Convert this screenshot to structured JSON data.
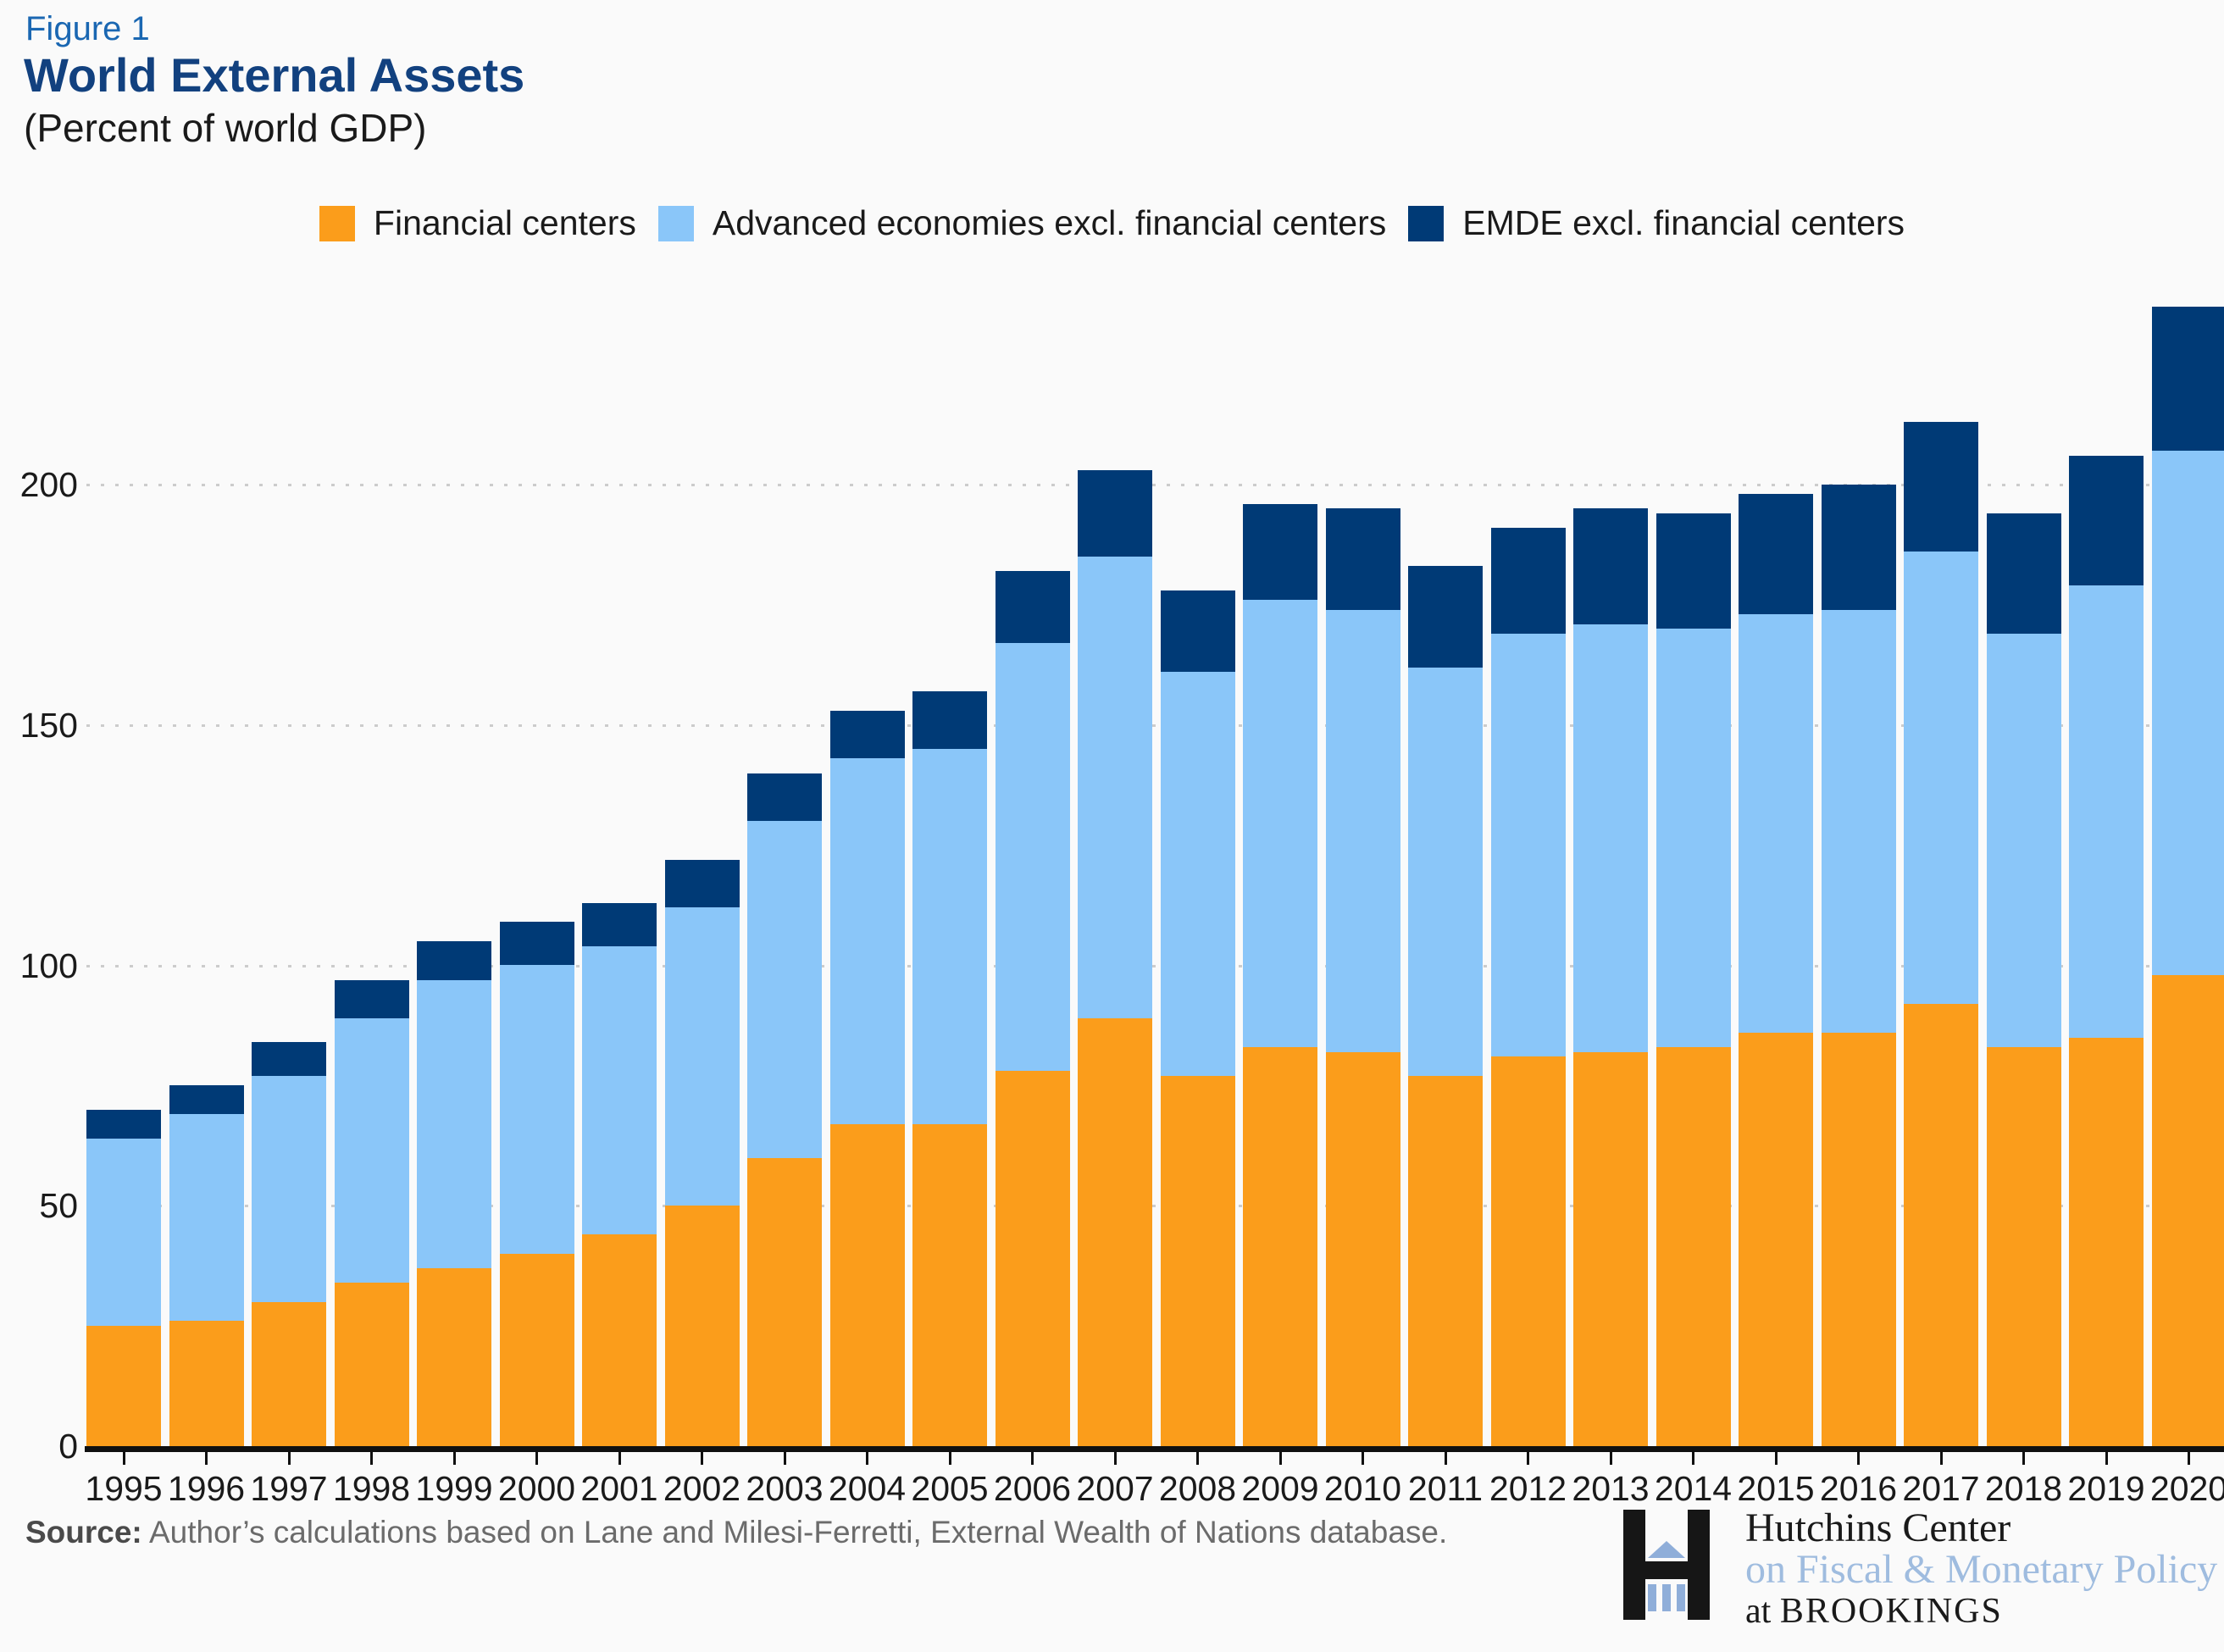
{
  "figure_label": "Figure 1",
  "title": "World External Assets",
  "subtitle": "(Percent of world GDP)",
  "colors": {
    "background": "#FAFAFA",
    "financial_centers": "#FB9D1B",
    "advanced_economies": "#8AC6F9",
    "emde": "#003A76",
    "gridline": "#CCCCCC",
    "axis": "#101010",
    "figure_label_blue": "#1A67B2",
    "title_navy": "#12417F"
  },
  "chart_data": {
    "type": "bar",
    "stacked": true,
    "title": "World External Assets",
    "subtitle": "(Percent of world GDP)",
    "xlabel": "",
    "ylabel": "",
    "ylim": [
      0,
      240
    ],
    "yticks": [
      0,
      50,
      100,
      150,
      200
    ],
    "grid": "horizontal dotted",
    "legend_position": "top",
    "categories": [
      "1995",
      "1996",
      "1997",
      "1998",
      "1999",
      "2000",
      "2001",
      "2002",
      "2003",
      "2004",
      "2005",
      "2006",
      "2007",
      "2008",
      "2009",
      "2010",
      "2011",
      "2012",
      "2013",
      "2014",
      "2015",
      "2016",
      "2017",
      "2018",
      "2019",
      "2020"
    ],
    "series": [
      {
        "name": "Financial centers",
        "color": "#FB9D1B",
        "values": [
          25,
          26,
          30,
          34,
          37,
          40,
          44,
          50,
          60,
          67,
          67,
          78,
          89,
          77,
          83,
          82,
          77,
          81,
          82,
          83,
          86,
          86,
          92,
          83,
          85,
          98
        ]
      },
      {
        "name": "Advanced economies excl. financial centers",
        "color": "#8AC6F9",
        "values": [
          39,
          43,
          47,
          55,
          60,
          60,
          60,
          62,
          70,
          76,
          78,
          89,
          96,
          84,
          93,
          92,
          85,
          88,
          89,
          87,
          87,
          88,
          94,
          86,
          94,
          109
        ]
      },
      {
        "name": "EMDE excl. financial centers",
        "color": "#003A76",
        "values": [
          6,
          6,
          7,
          8,
          8,
          9,
          9,
          10,
          10,
          10,
          12,
          15,
          18,
          17,
          20,
          21,
          21,
          22,
          24,
          24,
          25,
          26,
          27,
          25,
          27,
          30
        ]
      }
    ]
  },
  "source": {
    "prefix": "Source:",
    "text": " Author’s calculations based on Lane and Milesi-Ferretti, External Wealth of Nations database."
  },
  "logo": {
    "line1": "Hutchins Center",
    "line2": "on Fiscal & Monetary Policy",
    "line3_prefix": "at ",
    "line3_name": "BROOKINGS"
  }
}
